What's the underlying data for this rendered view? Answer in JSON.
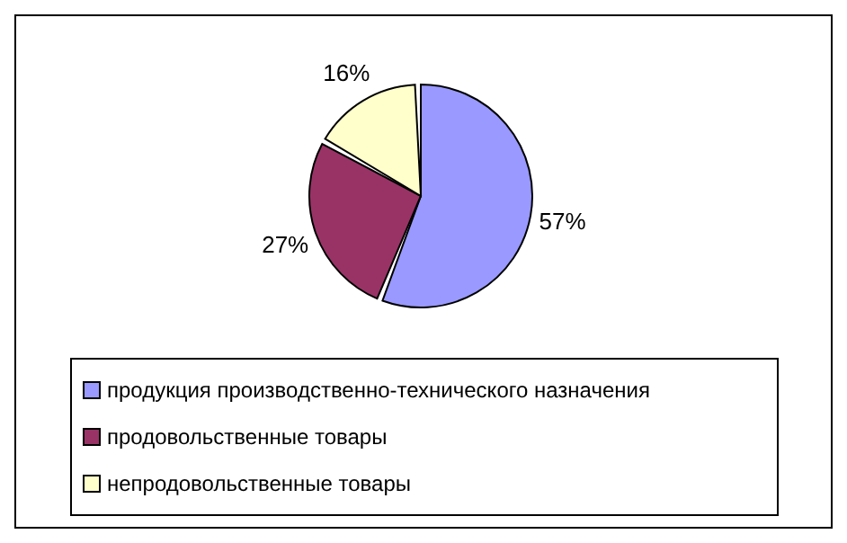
{
  "chart_data": {
    "type": "pie",
    "categories": [
      "продукция производственно-технического назначения",
      "продовольственные товары",
      "непродовольственные товары"
    ],
    "values": [
      57,
      27,
      16
    ],
    "colors": [
      "#9999ff",
      "#993366",
      "#ffffcc"
    ],
    "value_labels": [
      "57%",
      "27%",
      "16%"
    ],
    "legend": "bottom"
  }
}
